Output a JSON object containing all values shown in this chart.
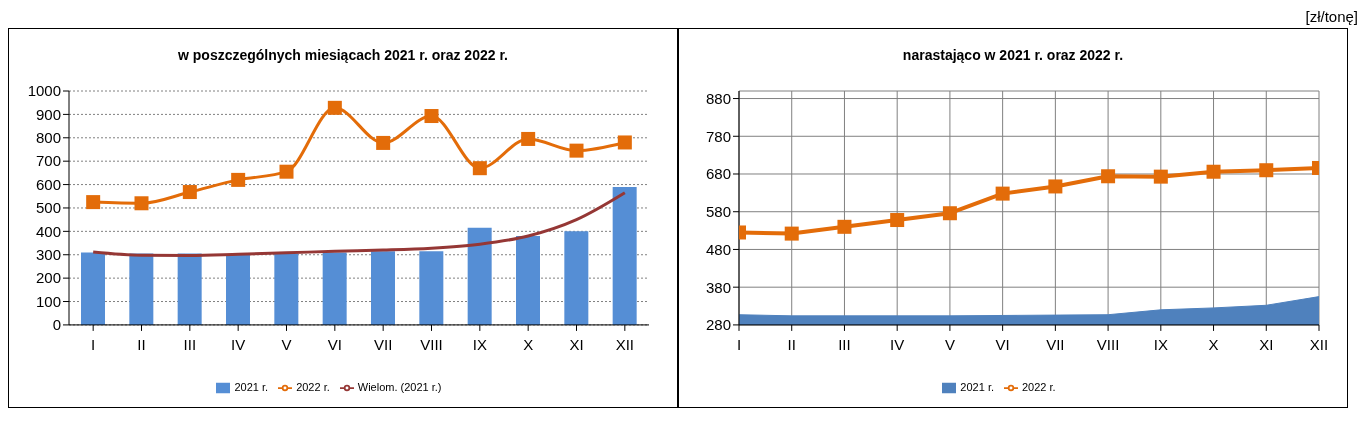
{
  "chart_data": [
    {
      "type": "bar",
      "title": "w poszczególnych miesiącach 2021 r. oraz 2022 r.",
      "categories": [
        "I",
        "II",
        "III",
        "IV",
        "V",
        "VI",
        "VII",
        "VIII",
        "IX",
        "X",
        "XI",
        "XII"
      ],
      "series": [
        {
          "name": "2021 r.",
          "color": "#558ed5",
          "values": [
            310,
            305,
            305,
            300,
            305,
            310,
            315,
            315,
            415,
            380,
            400,
            590
          ]
        },
        {
          "name": "2022 r.",
          "type": "line",
          "color": "#e36c09",
          "marker": "square",
          "values": [
            525,
            520,
            568,
            620,
            655,
            928,
            778,
            893,
            670,
            795,
            745,
            780
          ]
        },
        {
          "name": "Wielom. (2021 r.)",
          "type": "line",
          "color": "#953735",
          "marker": "none",
          "values": [
            312,
            298,
            297,
            302,
            308,
            315,
            320,
            328,
            345,
            380,
            450,
            565
          ]
        }
      ],
      "ylim": [
        0,
        1000
      ],
      "yticks": [
        0,
        100,
        200,
        300,
        400,
        500,
        600,
        700,
        800,
        900,
        1000
      ],
      "grid": "y",
      "legend": "bottom"
    },
    {
      "type": "line",
      "title": "narastająco w 2021 r. oraz 2022 r.",
      "categories": [
        "I",
        "II",
        "III",
        "IV",
        "V",
        "VI",
        "VII",
        "VIII",
        "IX",
        "X",
        "XI",
        "XII"
      ],
      "series": [
        {
          "name": "2021 r.",
          "type": "area",
          "color": "#4f81bd",
          "values": [
            307,
            304,
            304,
            304,
            304,
            305,
            306,
            307,
            320,
            325,
            332,
            355
          ]
        },
        {
          "name": "2022 r.",
          "color": "#e36c09",
          "marker": "square",
          "values": [
            525,
            522,
            540,
            558,
            576,
            628,
            647,
            674,
            673,
            686,
            690,
            696
          ]
        }
      ],
      "ylim": [
        280,
        900
      ],
      "yticks": [
        280,
        380,
        480,
        580,
        680,
        780,
        880
      ],
      "grid": true,
      "legend": "bottom",
      "annotations": [
        "[zł/tonę]"
      ]
    }
  ]
}
